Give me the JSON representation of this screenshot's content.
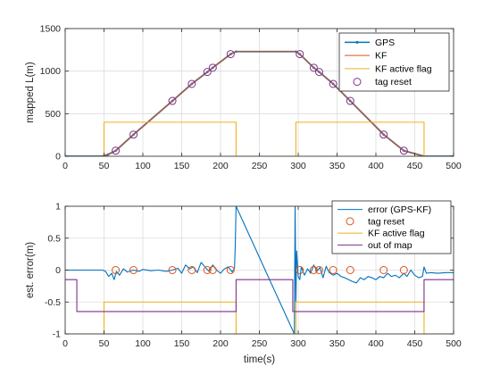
{
  "chart_data": [
    {
      "type": "line",
      "ylabel": "mapped L(m)",
      "xlabel": "",
      "xlim": [
        0,
        500
      ],
      "ylim": [
        0,
        1500
      ],
      "xticks": [
        0,
        50,
        100,
        150,
        200,
        250,
        300,
        350,
        400,
        450,
        500
      ],
      "yticks": [
        0,
        500,
        1000,
        1500
      ],
      "grid": true,
      "legend_position": "top-right",
      "series": [
        {
          "name": "GPS",
          "color": "#0072BD",
          "style": "line-with-dots",
          "x": [
            0,
            48,
            55,
            65,
            88,
            138,
            163,
            183,
            190,
            213,
            220,
            297,
            302,
            320,
            327,
            345,
            367,
            410,
            436,
            462,
            500
          ],
          "y": [
            0,
            0,
            20,
            65,
            255,
            650,
            850,
            990,
            1040,
            1200,
            1230,
            1230,
            1200,
            1040,
            990,
            850,
            650,
            255,
            65,
            0,
            0
          ]
        },
        {
          "name": "KF",
          "color": "#D95319",
          "x": [
            0,
            48,
            55,
            65,
            88,
            138,
            163,
            183,
            190,
            213,
            220,
            297,
            302,
            320,
            327,
            345,
            367,
            410,
            436,
            462,
            500
          ],
          "y": [
            0,
            0,
            20,
            65,
            255,
            650,
            850,
            990,
            1040,
            1200,
            1230,
            1230,
            1200,
            1040,
            990,
            850,
            650,
            255,
            65,
            0,
            0
          ]
        },
        {
          "name": "KF active flag",
          "color": "#EDB120",
          "x": [
            0,
            50,
            50,
            220,
            220,
            297,
            297,
            462,
            462,
            500
          ],
          "y": [
            0,
            0,
            400,
            400,
            0,
            0,
            400,
            400,
            0,
            0
          ]
        }
      ],
      "markers": {
        "name": "tag reset",
        "color": "#7E2F8E",
        "x": [
          65,
          88,
          138,
          163,
          183,
          190,
          213,
          302,
          320,
          327,
          345,
          367,
          410,
          436
        ],
        "y": [
          65,
          255,
          650,
          850,
          990,
          1040,
          1200,
          1200,
          1040,
          990,
          850,
          650,
          255,
          65
        ]
      },
      "legend": [
        "GPS",
        "KF",
        "KF active flag",
        "tag reset"
      ]
    },
    {
      "type": "line",
      "ylabel": "est. error(m)",
      "xlabel": "time(s)",
      "xlim": [
        0,
        500
      ],
      "ylim": [
        -1,
        1
      ],
      "xticks": [
        0,
        50,
        100,
        150,
        200,
        250,
        300,
        350,
        400,
        450,
        500
      ],
      "yticks": [
        -1,
        -0.5,
        0,
        0.5,
        1
      ],
      "grid": true,
      "legend_position": "top-right",
      "series": [
        {
          "name": "error (GPS-KF)",
          "color": "#0072BD",
          "x": [
            0,
            48,
            52,
            56,
            60,
            63,
            66,
            70,
            75,
            80,
            88,
            95,
            100,
            110,
            120,
            130,
            138,
            145,
            150,
            155,
            160,
            165,
            170,
            175,
            180,
            185,
            190,
            195,
            200,
            205,
            210,
            215,
            218,
            219,
            220,
            295,
            296,
            297,
            298,
            300,
            302,
            304,
            308,
            312,
            316,
            320,
            324,
            328,
            332,
            336,
            340,
            345,
            350,
            355,
            360,
            365,
            370,
            375,
            380,
            385,
            390,
            395,
            400,
            405,
            410,
            415,
            420,
            425,
            430,
            436,
            440,
            445,
            450,
            455,
            460,
            462,
            465,
            470,
            480,
            490,
            500
          ],
          "y": [
            0,
            0,
            -0.02,
            -0.1,
            -0.05,
            -0.15,
            -0.02,
            -0.08,
            0.02,
            -0.03,
            0.0,
            -0.02,
            0.01,
            -0.01,
            0.0,
            -0.02,
            0.0,
            0.03,
            -0.05,
            0.08,
            0.02,
            0.05,
            -0.04,
            0.12,
            0.05,
            -0.02,
            0.08,
            0.0,
            -0.05,
            0.02,
            0.05,
            -0.03,
            0.03,
            0.4,
            1.0,
            -1.0,
            1.0,
            -0.5,
            0.3,
            -0.1,
            -0.15,
            0.05,
            -0.08,
            0.02,
            -0.05,
            0.08,
            -0.02,
            0.04,
            -0.12,
            0.06,
            -0.04,
            -0.08,
            -0.05,
            -0.1,
            -0.12,
            -0.15,
            -0.18,
            -0.2,
            -0.12,
            -0.15,
            -0.1,
            -0.12,
            -0.15,
            -0.1,
            -0.12,
            -0.05,
            -0.1,
            -0.08,
            -0.12,
            -0.05,
            -0.1,
            0.0,
            -0.08,
            -0.12,
            -0.1,
            0.05,
            -0.05,
            -0.04,
            -0.05,
            -0.04,
            -0.04
          ]
        },
        {
          "name": "KF active flag",
          "color": "#EDB120",
          "x": [
            0,
            50,
            50,
            220,
            220,
            297,
            297,
            462,
            462,
            500
          ],
          "y": [
            -1,
            -1,
            -0.5,
            -0.5,
            -1,
            -1,
            -0.5,
            -0.5,
            -1,
            -1
          ]
        },
        {
          "name": "out of map",
          "color": "#7E2F8E",
          "x": [
            0,
            15,
            15,
            220,
            220,
            293,
            293,
            462,
            462,
            500
          ],
          "y": [
            -0.15,
            -0.15,
            -0.65,
            -0.65,
            -0.15,
            -0.15,
            -0.65,
            -0.65,
            -0.15,
            -0.15
          ]
        }
      ],
      "markers": {
        "name": "tag reset",
        "color": "#D95319",
        "x": [
          65,
          88,
          138,
          163,
          183,
          190,
          213,
          302,
          320,
          327,
          345,
          367,
          410,
          436
        ],
        "y": [
          0,
          0,
          0,
          0,
          0,
          0,
          0,
          0,
          0,
          0,
          0,
          0,
          0,
          0
        ]
      },
      "legend": [
        "error (GPS-KF)",
        "tag reset",
        "KF active flag",
        "out of map"
      ]
    }
  ]
}
